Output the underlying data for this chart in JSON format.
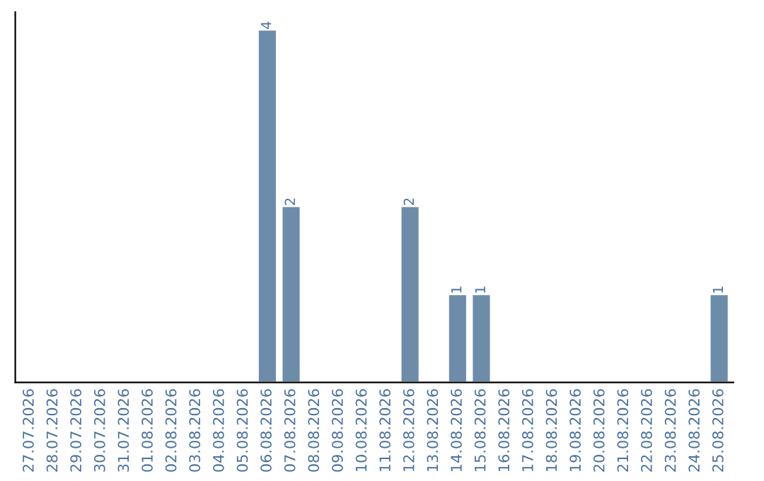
{
  "chart_data": {
    "type": "bar",
    "categories": [
      "27.07.2026",
      "28.07.2026",
      "29.07.2026",
      "30.07.2026",
      "31.07.2026",
      "01.08.2026",
      "02.08.2026",
      "03.08.2026",
      "04.08.2026",
      "05.08.2026",
      "06.08.2026",
      "07.08.2026",
      "08.08.2026",
      "09.08.2026",
      "10.08.2026",
      "11.08.2026",
      "12.08.2026",
      "13.08.2026",
      "14.08.2026",
      "15.08.2026",
      "16.08.2026",
      "17.08.2026",
      "18.08.2026",
      "19.08.2026",
      "20.08.2026",
      "21.08.2026",
      "22.08.2026",
      "23.08.2026",
      "24.08.2026",
      "25.08.2026"
    ],
    "values": [
      null,
      null,
      null,
      null,
      null,
      null,
      null,
      null,
      null,
      null,
      4,
      2,
      null,
      null,
      null,
      null,
      2,
      null,
      1,
      1,
      null,
      null,
      null,
      null,
      null,
      null,
      null,
      null,
      null,
      1
    ],
    "data_labels": true,
    "color": "#6d8caa",
    "tick_labels": "x",
    "grid": false,
    "legend": false
  }
}
